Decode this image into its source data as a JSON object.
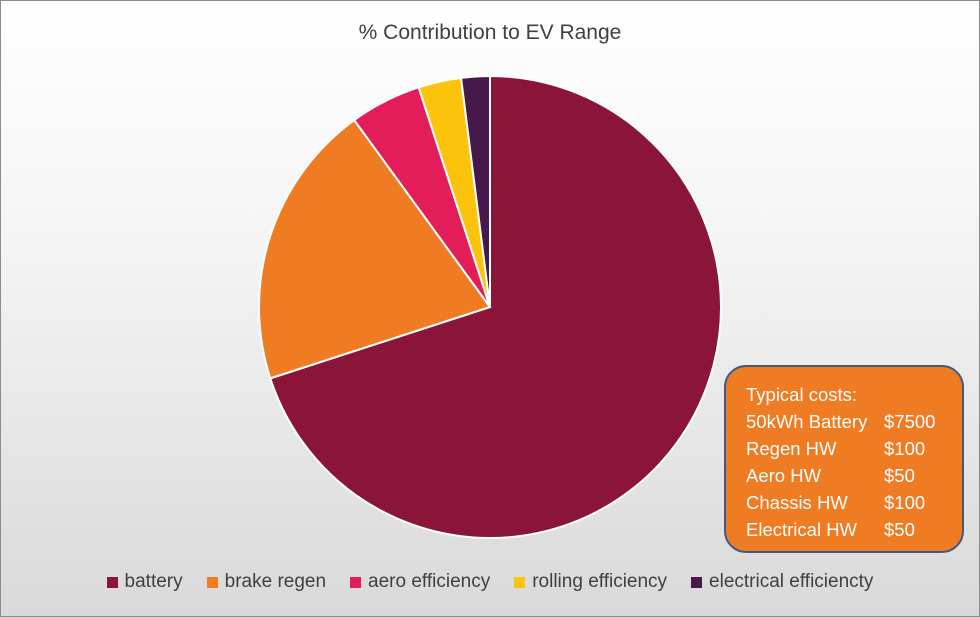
{
  "chart_data": {
    "type": "pie",
    "title": "% Contribution to EV Range",
    "slices": [
      {
        "name": "battery",
        "value": 70,
        "color": "#8b1538"
      },
      {
        "name": "brake regen",
        "value": 20,
        "color": "#ef7b22"
      },
      {
        "name": "aero efficiency",
        "value": 5,
        "color": "#e31c5a"
      },
      {
        "name": "rolling efficiency",
        "value": 3,
        "color": "#fcc30b"
      },
      {
        "name": "electrical efficiencty",
        "value": 2,
        "color": "#47184a"
      }
    ],
    "legend_position": "bottom"
  },
  "annotation": {
    "title": "Typical costs:",
    "rows": [
      {
        "label": "50kWh Battery",
        "cost": "$7500"
      },
      {
        "label": "Regen HW",
        "cost": "$100"
      },
      {
        "label": "Aero HW",
        "cost": "$50"
      },
      {
        "label": "Chassis HW",
        "cost": "$100"
      },
      {
        "label": "Electrical HW",
        "cost": "$50"
      }
    ],
    "fill_color": "#ef7b22",
    "border_color": "#3d5a80"
  }
}
